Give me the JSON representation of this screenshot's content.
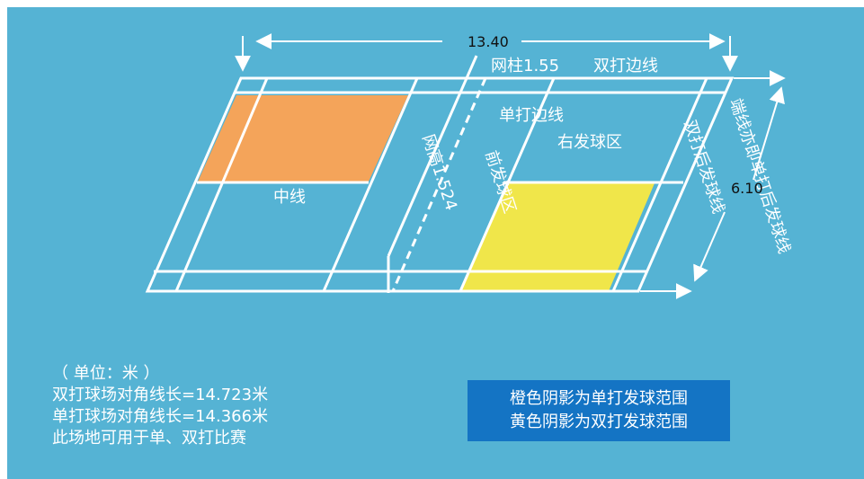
{
  "colors": {
    "background": "#55b3d4",
    "orange_area": "#f4a45a",
    "yellow_area": "#f0e64a",
    "lines": "#ffffff",
    "legend_box": "#1474c4"
  },
  "dimensions": {
    "length": "13.40",
    "width": "6.10",
    "net_post": "网柱1.55",
    "net_height": "网高1.524"
  },
  "labels": {
    "doubles_sideline": "双打边线",
    "singles_sideline": "单打边线",
    "right_service_court": "右发球区",
    "center_line": "中线",
    "front_service_line": "前发球区",
    "doubles_back_service_line": "双打后发球线",
    "end_line": "端线亦即单打后发球线"
  },
  "notes": {
    "unit": "（ 单位：米 ）",
    "doubles_diagonal": "双打球场对角线长=14.723米",
    "singles_diagonal": "单打球场对角线长=14.366米",
    "usage": "此场地可用于单、双打比赛"
  },
  "legend": {
    "orange": "橙色阴影为单打发球范围",
    "yellow": "黄色阴影为双打发球范围"
  }
}
